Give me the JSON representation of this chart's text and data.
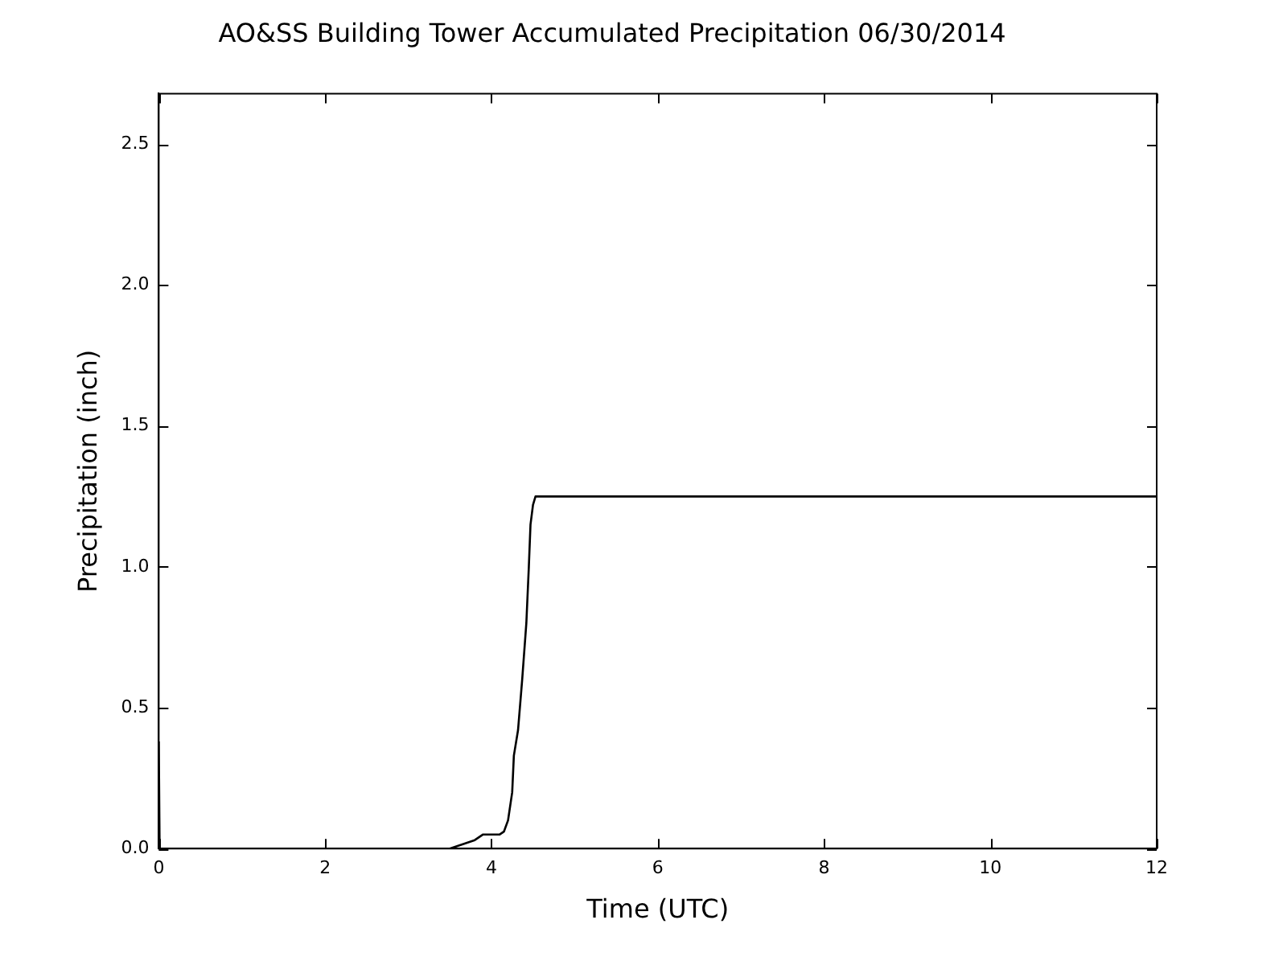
{
  "chart_data": {
    "type": "line",
    "title": "AO&SS Building Tower Accumulated Precipitation 06/30/2014",
    "xlabel": "Time (UTC)",
    "ylabel": "Precipitation (inch)",
    "series": [
      {
        "color": "#000000",
        "x": [
          0,
          0.01,
          3.5,
          3.6,
          3.7,
          3.8,
          3.9,
          4.1,
          4.15,
          4.2,
          4.25,
          4.27,
          4.32,
          4.37,
          4.42,
          4.45,
          4.47,
          4.5,
          4.53,
          4.57,
          12
        ],
        "values": [
          0.38,
          0,
          0,
          0.01,
          0.02,
          0.03,
          0.05,
          0.05,
          0.06,
          0.1,
          0.2,
          0.33,
          0.42,
          0.6,
          0.8,
          1.0,
          1.15,
          1.22,
          1.25,
          1.25,
          1.25
        ]
      }
    ],
    "xlim": [
      0,
      12
    ],
    "xticks": [
      0,
      2,
      4,
      6,
      8,
      10,
      12
    ],
    "ylim": [
      0,
      2.68
    ],
    "yticks": [
      {
        "value": 0,
        "label": "0.0"
      },
      {
        "value": 0.5,
        "label": "0.5"
      },
      {
        "value": 1,
        "label": "1.0"
      },
      {
        "value": 1.5,
        "label": "1.5"
      },
      {
        "value": 2,
        "label": "2.0"
      },
      {
        "value": 2.5,
        "label": "2.5"
      }
    ],
    "grid": false,
    "legend": false,
    "marker": "none",
    "line_style": "solid"
  }
}
